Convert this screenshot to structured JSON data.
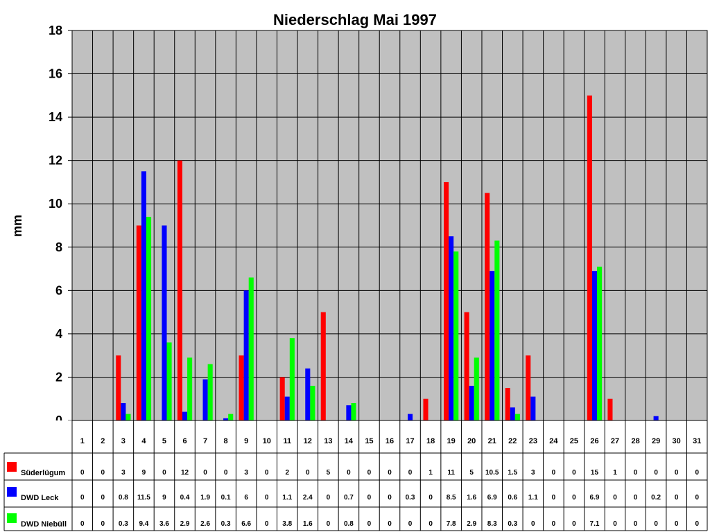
{
  "chart_data": {
    "type": "bar",
    "title": "Niederschlag Mai 1997",
    "ylabel": "mm",
    "xlabel": "",
    "ylim": [
      0,
      18
    ],
    "yticks": [
      0,
      2,
      4,
      6,
      8,
      10,
      12,
      14,
      16,
      18
    ],
    "grid": true,
    "legend": "data-table-left",
    "categories": [
      "1",
      "2",
      "3",
      "4",
      "5",
      "6",
      "7",
      "8",
      "9",
      "10",
      "11",
      "12",
      "13",
      "14",
      "15",
      "16",
      "17",
      "18",
      "19",
      "20",
      "21",
      "22",
      "23",
      "24",
      "25",
      "26",
      "27",
      "28",
      "29",
      "30",
      "31"
    ],
    "series": [
      {
        "name": "Süderlügum",
        "color": "#ff0000",
        "values": [
          0,
          0,
          3,
          9,
          0,
          12,
          0,
          0,
          3,
          0,
          2,
          0,
          5,
          0,
          0,
          0,
          0,
          1,
          11,
          5,
          10.5,
          1.5,
          3,
          0,
          0,
          15,
          1,
          0,
          0,
          0,
          0
        ]
      },
      {
        "name": "DWD Leck",
        "color": "#0000ff",
        "values": [
          0,
          0,
          0.8,
          11.5,
          9,
          0.4,
          1.9,
          0.1,
          6,
          0,
          1.1,
          2.4,
          0,
          0.7,
          0,
          0,
          0.3,
          0,
          8.5,
          1.6,
          6.9,
          0.6,
          1.1,
          0,
          0,
          6.9,
          0,
          0,
          0.2,
          0,
          0
        ]
      },
      {
        "name": "DWD Niebüll",
        "color": "#00ff00",
        "values": [
          0,
          0,
          0.3,
          9.4,
          3.6,
          2.9,
          2.6,
          0.3,
          6.6,
          0,
          3.8,
          1.6,
          0,
          0.8,
          0,
          0,
          0,
          0,
          7.8,
          2.9,
          8.3,
          0.3,
          0,
          0,
          0,
          7.1,
          0,
          0,
          0,
          0,
          0
        ]
      }
    ],
    "plot_background": "#c0c0c0"
  }
}
